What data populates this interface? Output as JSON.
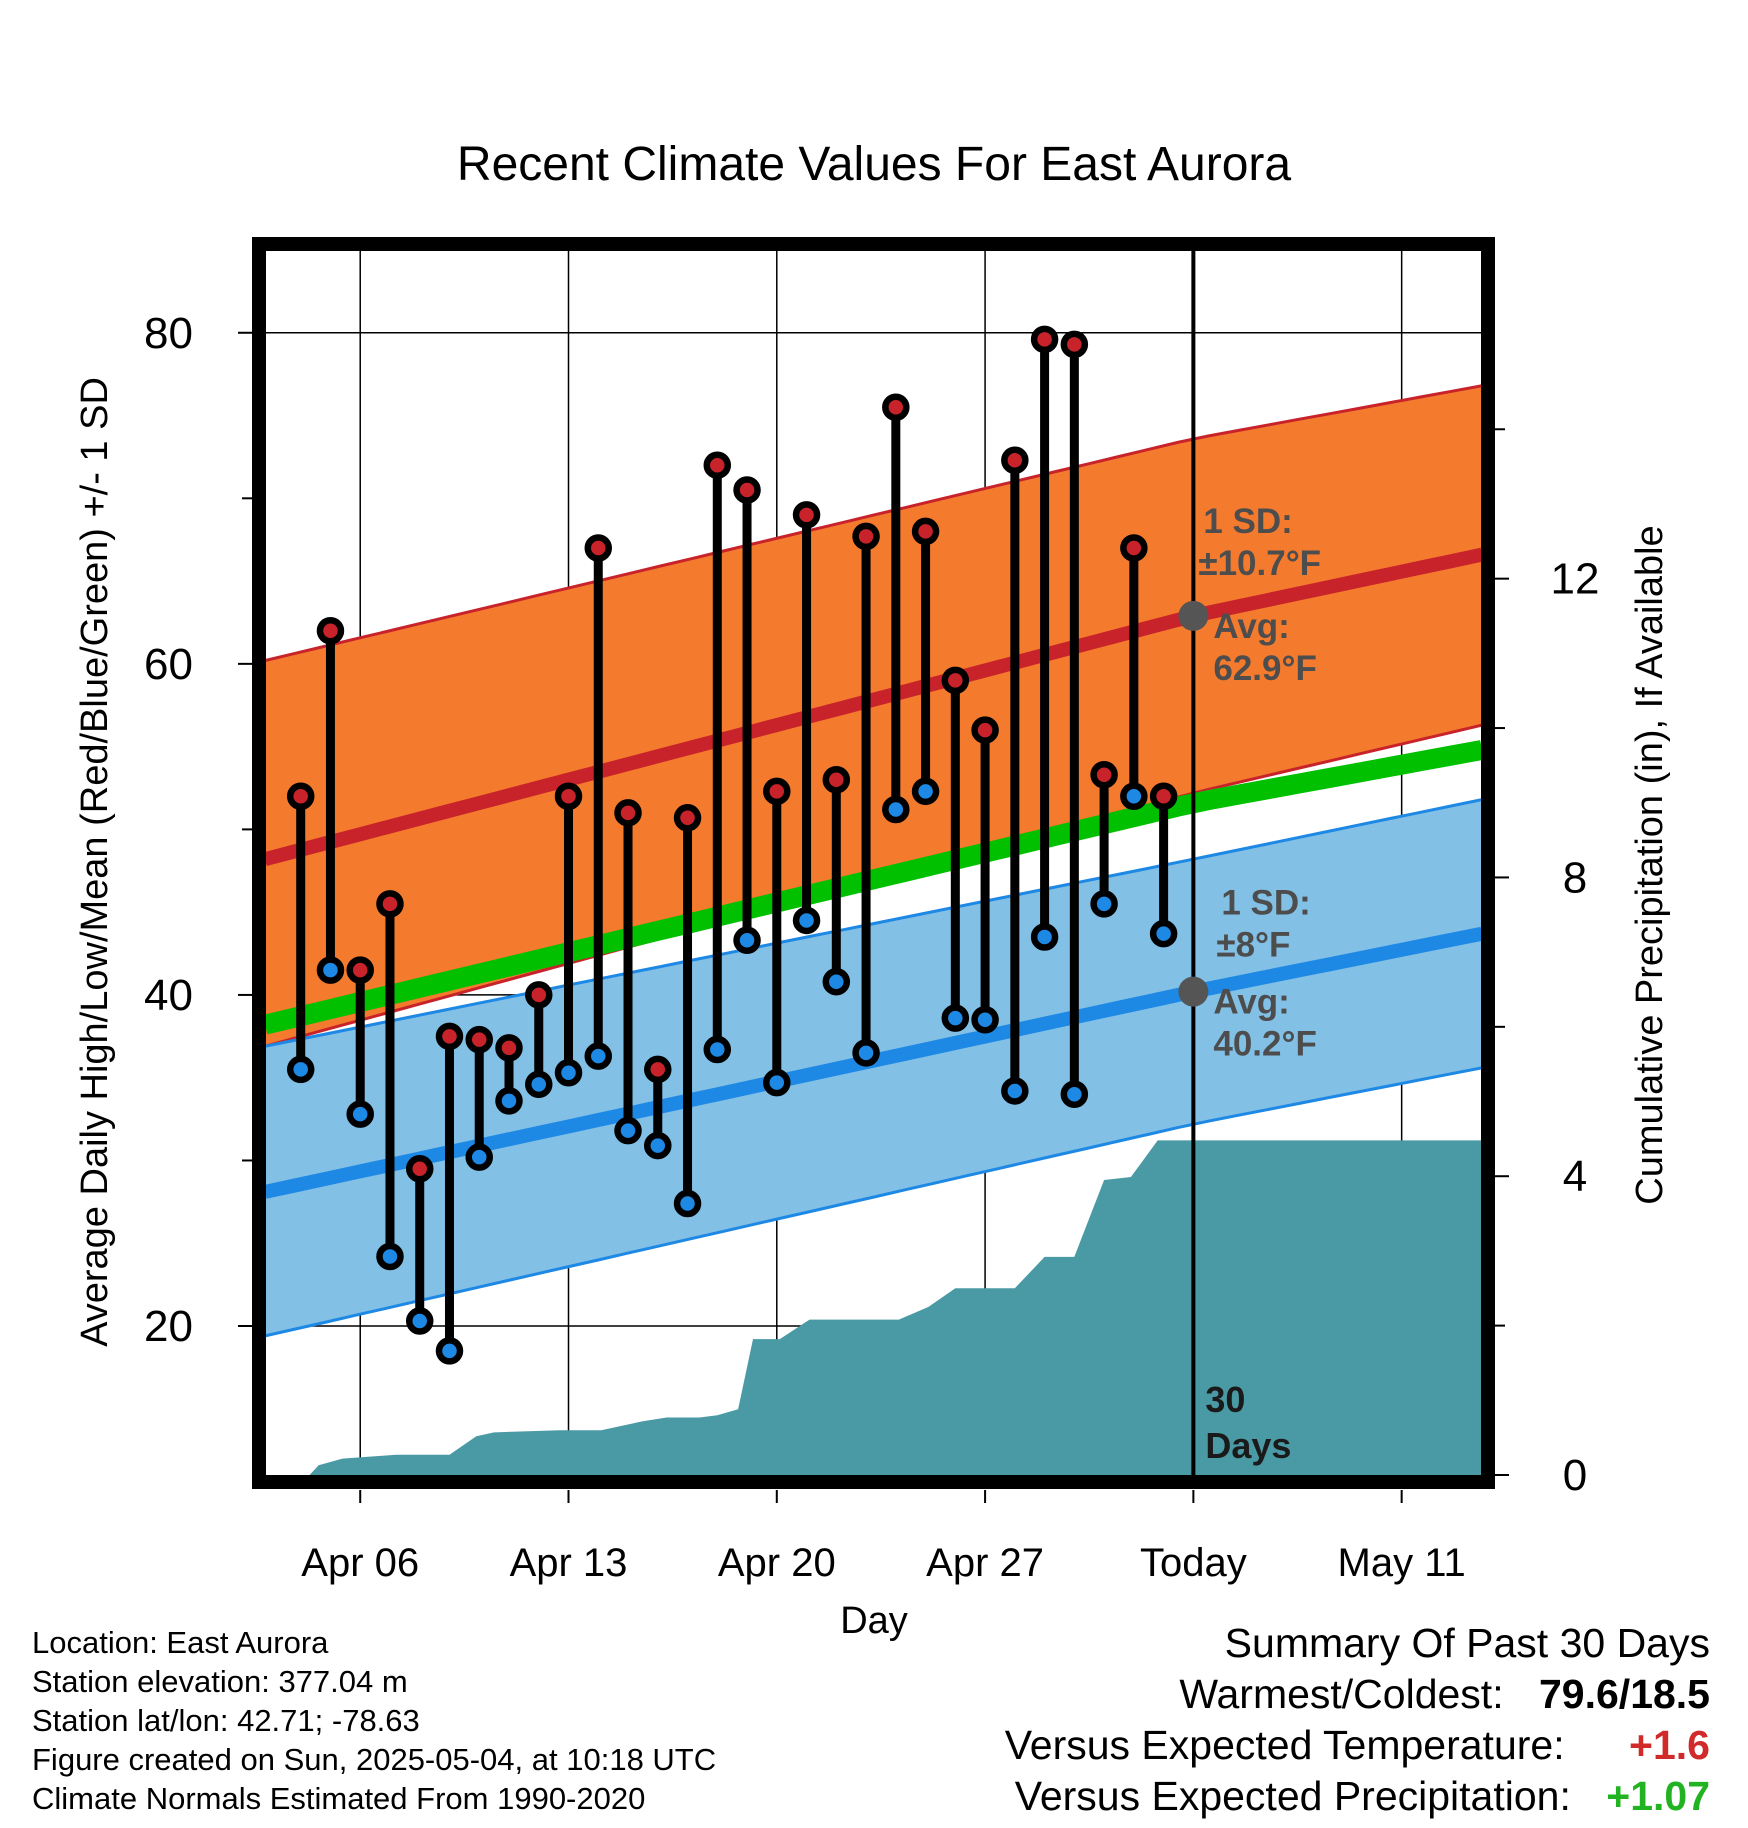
{
  "title": "Recent Climate Values For East Aurora",
  "colors": {
    "high": "#c8232a",
    "low": "#1e88e5",
    "mean": "#00c000",
    "high_band": "#f47a2e",
    "low_band": "#82c0e6",
    "precip": "#4a9aa5",
    "avg_marker": "#555555",
    "annotation": "#4d4d4d",
    "plus_temp": "#d12a2a",
    "plus_precip": "#22b322"
  },
  "chart_data": {
    "type": "line",
    "title": "Recent Climate Values For East Aurora",
    "xlabel": "Day",
    "ylabel": "Average Daily High/Low/Mean (Red/Blue/Green) +/- 1 SD",
    "y2label": "Cumulative Precipitation (in), If Available",
    "x_ticks": [
      "Apr 06",
      "Apr 13",
      "Apr 20",
      "Apr 27",
      "Today",
      "May 11"
    ],
    "x_tick_days": [
      6,
      13,
      20,
      27,
      34,
      41
    ],
    "xlim": [
      2.8,
      43.7
    ],
    "ylim": [
      11,
      85
    ],
    "y_ticks": [
      20,
      40,
      60,
      80
    ],
    "y2lim": [
      0,
      16.4
    ],
    "y2_ticks": [
      0,
      4,
      8,
      12
    ],
    "grid": true,
    "today_day": 34,
    "today_label": "30\nDays",
    "days": [
      4,
      5,
      6,
      7,
      8,
      9,
      10,
      11,
      12,
      13,
      14,
      15,
      16,
      17,
      18,
      19,
      20,
      21,
      22,
      23,
      24,
      25,
      26,
      27,
      28,
      29,
      30,
      31,
      32,
      33
    ],
    "daily_high": [
      52,
      62,
      41.5,
      45.5,
      29.5,
      37.5,
      37.3,
      36.8,
      40,
      52,
      67,
      51,
      35.5,
      50.7,
      72,
      70.5,
      52.3,
      69,
      53,
      67.7,
      75.5,
      68,
      59,
      56,
      72.3,
      79.6,
      79.3,
      53.3,
      67,
      52
    ],
    "daily_low": [
      35.5,
      41.5,
      32.8,
      24.2,
      20.3,
      18.5,
      30.2,
      33.6,
      34.6,
      35.3,
      36.3,
      31.8,
      30.9,
      27.4,
      36.7,
      43.3,
      34.7,
      44.5,
      40.8,
      36.5,
      51.2,
      52.3,
      38.6,
      38.5,
      34.2,
      43.5,
      34,
      45.5,
      52,
      43.7
    ],
    "normal_high": {
      "days": [
        2.8,
        34,
        43.7
      ],
      "avg": [
        48.2,
        62.9,
        66.6
      ],
      "upper": [
        60.2,
        73.6,
        76.8
      ],
      "lower": [
        36.9,
        52.2,
        56.3
      ],
      "sd_label": "1 SD:",
      "sd_value": "±10.7°F",
      "avg_label": "Avg:",
      "avg_value": "62.9°F"
    },
    "normal_low": {
      "days": [
        2.8,
        34,
        43.7
      ],
      "avg": [
        28.1,
        40.2,
        43.7
      ],
      "upper": [
        36.9,
        48.2,
        51.8
      ],
      "lower": [
        19.4,
        32.2,
        35.6
      ],
      "sd_label": "1 SD:",
      "sd_value": "±8°F",
      "avg_label": "Avg:",
      "avg_value": "40.2°F"
    },
    "normal_mean": {
      "days": [
        2.8,
        34,
        43.7
      ],
      "values": [
        38.2,
        51.6,
        54.8
      ]
    },
    "precip": {
      "days": [
        2.8,
        4.3,
        4.6,
        5.4,
        7.2,
        9.0,
        9.9,
        10.5,
        12.7,
        14.1,
        15.5,
        16.3,
        17.4,
        18.0,
        18.7,
        19.2,
        20.1,
        21.1,
        22.1,
        24.1,
        25.1,
        26.0,
        27.0,
        28.0,
        29.0,
        30.0,
        31.0,
        31.9,
        32.8,
        33.3,
        43.7
      ],
      "values": [
        0,
        0,
        0.13,
        0.22,
        0.27,
        0.27,
        0.52,
        0.57,
        0.6,
        0.6,
        0.72,
        0.77,
        0.77,
        0.8,
        0.88,
        1.82,
        1.82,
        2.08,
        2.08,
        2.08,
        2.25,
        2.5,
        2.5,
        2.5,
        2.92,
        2.92,
        3.95,
        3.99,
        4.48,
        4.48,
        4.48
      ]
    }
  },
  "info": {
    "location": "Location: East Aurora",
    "elevation": "Station elevation: 377.04 m",
    "latlon": "Station lat/lon: 42.71; -78.63",
    "created": "Figure created on Sun, 2025-05-04, at 10:18 UTC",
    "normals": "Climate Normals Estimated From 1990-2020"
  },
  "summary": {
    "heading": "Summary Of Past 30 Days",
    "warmest_label": "Warmest/Coldest:",
    "warmest_value": "79.6/18.5",
    "temp_label": "Versus Expected Temperature:",
    "temp_value": "+1.6",
    "precip_label": "Versus Expected Precipitation:",
    "precip_value": "+1.07"
  }
}
